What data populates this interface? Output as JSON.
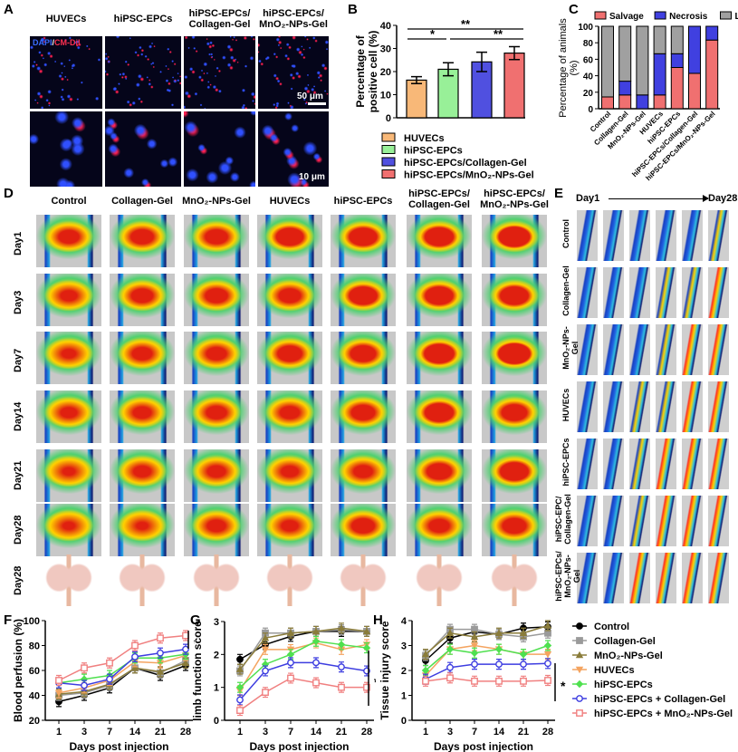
{
  "panel_labels": {
    "A": "A",
    "B": "B",
    "C": "C",
    "D": "D",
    "E": "E",
    "F": "F",
    "G": "G",
    "H": "H"
  },
  "panelA": {
    "columns": [
      "HUVECs",
      "hiPSC-EPCs",
      "hiPSC-EPCs/ Collagen-Gel",
      "hiPSC-EPCs/ MnO₂-NPs-Gel"
    ],
    "stain_dapi": "DAPI",
    "stain_sep": "/",
    "stain_cm": "CM-DiI",
    "scale_top": "50 μm",
    "scale_bottom": "10 μm",
    "colors": {
      "dapi": "#3050ff",
      "cm_dil": "#ff2050"
    }
  },
  "panelD": {
    "columns": [
      "Control",
      "Collagen-Gel",
      "MnO₂-NPs-Gel",
      "HUVECs",
      "hiPSC-EPCs",
      "hiPSC-EPCs/ Collagen-Gel",
      "hiPSC-EPCs/ MnO₂-NPs-Gel"
    ],
    "rows": [
      "Day1",
      "Day3",
      "Day7",
      "Day14",
      "Day21",
      "Day28",
      "Day28"
    ]
  },
  "panelE": {
    "start": "Day1",
    "end": "Day28",
    "rows": [
      "Control",
      "Collagen-Gel",
      "MnO₂-NPs-Gel",
      "HUVECs",
      "hiPSC-EPCs",
      "hiPSC-EPC/ Collagen-Gel",
      "hiPSC-EPCs/ MnO₂-NPs-Gel"
    ]
  },
  "legend_lines": [
    {
      "name": "Control",
      "color": "#000000",
      "marker": "circle"
    },
    {
      "name": "Collagen-Gel",
      "color": "#9a9a9a",
      "marker": "square"
    },
    {
      "name": "MnO₂-NPs-Gel",
      "color": "#8a7c3a",
      "marker": "triangle"
    },
    {
      "name": "HUVECs",
      "color": "#f4a460",
      "marker": "triangle-down"
    },
    {
      "name": "hiPSC-EPCs",
      "color": "#4fe04f",
      "marker": "diamond"
    },
    {
      "name": "hiPSC-EPCs + Collagen-Gel",
      "color": "#3d3de0",
      "marker": "open-circle"
    },
    {
      "name": "hiPSC-EPCs + MnO₂-NPs-Gel",
      "color": "#f08080",
      "marker": "open-square"
    }
  ],
  "chart_data": [
    {
      "id": "B",
      "type": "bar",
      "ylabel": "Percentage of positive cell (%)",
      "ylim": [
        0,
        40
      ],
      "yticks": [
        0,
        10,
        20,
        30,
        40
      ],
      "categories": [
        "HUVECs",
        "hiPSC-EPCs",
        "hiPSC-EPCs/Collagen-Gel",
        "hiPSC-EPCs/MnO₂-NPs-Gel"
      ],
      "values": [
        16.3,
        21.0,
        24.2,
        28.0
      ],
      "errors": [
        1.5,
        2.8,
        4.2,
        2.8
      ],
      "colors": [
        "#f8b878",
        "#98f098",
        "#5050e0",
        "#f07070"
      ],
      "significance": [
        {
          "from": 0,
          "to": 3,
          "label": "**"
        },
        {
          "from": 0,
          "to": 1,
          "label": "*"
        },
        {
          "from": 1,
          "to": 3,
          "label": "**"
        }
      ],
      "legend": "bottom"
    },
    {
      "id": "C",
      "type": "bar",
      "stacked": true,
      "ylabel": "Percentage of animals (%)",
      "ylim": [
        0,
        100
      ],
      "yticks": [
        0,
        20,
        40,
        60,
        80,
        100
      ],
      "categories": [
        "Control",
        "Collagen-Gel",
        "MnO₂-NPs-Gel",
        "HUVECs",
        "hiPSC-EPCs",
        "hiPSC-EPCs/Collagen-Gel",
        "hiPSC-EPCs/MnO₂-NPs-Gel"
      ],
      "series": [
        {
          "name": "Salvage",
          "color": "#f07070",
          "values": [
            14.3,
            16.7,
            0,
            16.7,
            50,
            42.9,
            83.3
          ]
        },
        {
          "name": "Necrosis",
          "color": "#4040e0",
          "values": [
            0,
            16.7,
            16.7,
            50,
            16.7,
            57.1,
            16.7
          ]
        },
        {
          "name": "Loss",
          "color": "#a0a0a0",
          "values": [
            85.7,
            66.6,
            83.3,
            33.3,
            33.3,
            0,
            0
          ]
        }
      ],
      "legend": "top"
    },
    {
      "id": "F",
      "type": "line",
      "xlabel": "Days post injection",
      "ylabel": "Blood perfusion (%)",
      "ylim": [
        20,
        100
      ],
      "yticks": [
        20,
        40,
        60,
        80,
        100
      ],
      "x": [
        "1",
        "3",
        "7",
        "14",
        "21",
        "28"
      ],
      "annotation": "*",
      "series": [
        {
          "name": "Control",
          "values": [
            35,
            40,
            46,
            62,
            56,
            64
          ]
        },
        {
          "name": "Collagen-Gel",
          "values": [
            40,
            42,
            48,
            62,
            58,
            68
          ]
        },
        {
          "name": "MnO₂-NPs-Gel",
          "values": [
            41,
            43,
            49,
            62,
            59,
            66
          ]
        },
        {
          "name": "HUVECs",
          "values": [
            42,
            46,
            52,
            67,
            66,
            72
          ]
        },
        {
          "name": "hiPSC-EPCs",
          "values": [
            50,
            53,
            56,
            70,
            70,
            73
          ]
        },
        {
          "name": "hiPSC-EPCs + Collagen-Gel",
          "values": [
            50,
            48,
            53,
            71,
            74,
            77
          ]
        },
        {
          "name": "hiPSC-EPCs + MnO₂-NPs-Gel",
          "values": [
            52,
            62,
            66,
            80,
            86,
            88
          ]
        }
      ]
    },
    {
      "id": "G",
      "type": "line",
      "xlabel": "Days post injection",
      "ylabel": "limb function score",
      "ylim": [
        0,
        3
      ],
      "yticks": [
        0,
        1,
        2,
        3
      ],
      "x": [
        "1",
        "3",
        "7",
        "14",
        "21",
        "28"
      ],
      "annotation": "*",
      "series": [
        {
          "name": "Control",
          "values": [
            1.85,
            2.3,
            2.55,
            2.7,
            2.7,
            2.7
          ]
        },
        {
          "name": "Collagen-Gel",
          "values": [
            1.5,
            2.65,
            2.65,
            2.7,
            2.75,
            2.7
          ]
        },
        {
          "name": "MnO₂-NPs-Gel",
          "values": [
            1.55,
            2.5,
            2.65,
            2.7,
            2.8,
            2.7
          ]
        },
        {
          "name": "HUVECs",
          "values": [
            0.9,
            2.15,
            2.15,
            2.35,
            2.15,
            2.3
          ]
        },
        {
          "name": "hiPSC-EPCs",
          "values": [
            1.0,
            1.7,
            2.0,
            2.4,
            2.3,
            2.2
          ]
        },
        {
          "name": "hiPSC-EPCs + Collagen-Gel",
          "values": [
            0.62,
            1.5,
            1.75,
            1.75,
            1.62,
            1.5
          ]
        },
        {
          "name": "hiPSC-EPCs + MnO₂-NPs-Gel",
          "values": [
            0.3,
            0.85,
            1.28,
            1.14,
            1.0,
            1.0
          ]
        }
      ]
    },
    {
      "id": "H",
      "type": "line",
      "xlabel": "Days post injection",
      "ylabel": "Tissue injury score",
      "ylim": [
        0,
        4
      ],
      "yticks": [
        0,
        1,
        2,
        3,
        4
      ],
      "x": [
        "1",
        "3",
        "7",
        "14",
        "21",
        "28"
      ],
      "annotation": "*",
      "series": [
        {
          "name": "Control",
          "values": [
            2.4,
            3.3,
            3.55,
            3.45,
            3.7,
            3.75
          ]
        },
        {
          "name": "Collagen-Gel",
          "values": [
            2.6,
            3.65,
            3.65,
            3.45,
            3.35,
            3.5
          ]
        },
        {
          "name": "MnO₂-NPs-Gel",
          "values": [
            2.65,
            3.5,
            3.35,
            3.5,
            3.5,
            3.8
          ]
        },
        {
          "name": "HUVECs",
          "values": [
            1.8,
            2.85,
            3.0,
            2.85,
            2.65,
            2.65
          ]
        },
        {
          "name": "hiPSC-EPCs",
          "values": [
            2.0,
            2.85,
            2.7,
            2.85,
            2.65,
            3.0
          ]
        },
        {
          "name": "hiPSC-EPCs + Collagen-Gel",
          "values": [
            1.65,
            2.12,
            2.25,
            2.25,
            2.25,
            2.28
          ]
        },
        {
          "name": "hiPSC-EPCs + MnO₂-NPs-Gel",
          "values": [
            1.57,
            1.7,
            1.57,
            1.57,
            1.57,
            1.6
          ]
        }
      ]
    }
  ]
}
